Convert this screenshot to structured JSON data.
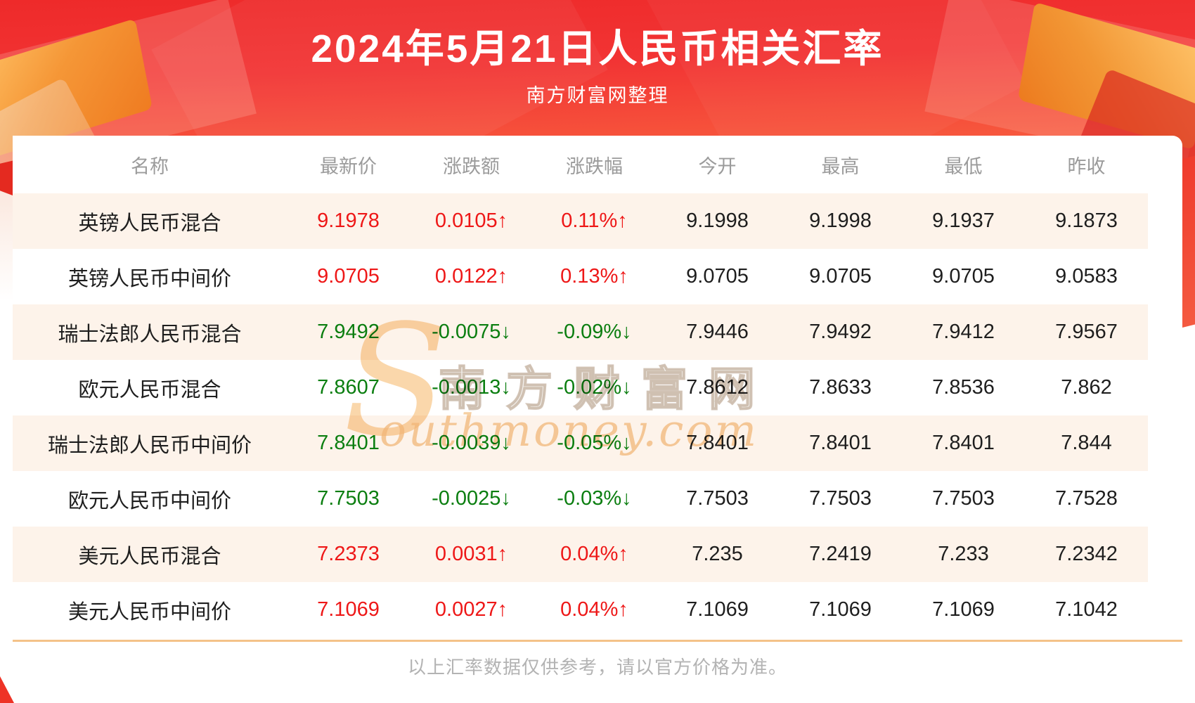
{
  "header": {
    "title": "2024年5月21日人民币相关汇率",
    "subtitle": "南方财富网整理"
  },
  "chart_data": {
    "type": "table",
    "title": "2024年5月21日人民币相关汇率",
    "columns": [
      "名称",
      "最新价",
      "涨跌额",
      "涨跌幅",
      "今开",
      "最高",
      "最低",
      "昨收"
    ],
    "arrows": {
      "up": "↑",
      "down": "↓"
    },
    "rows": [
      {
        "name": "英镑人民币混合",
        "latest": "9.1978",
        "change": "0.0105",
        "pct": "0.11%",
        "open": "9.1998",
        "high": "9.1998",
        "low": "9.1937",
        "prev": "9.1873",
        "trend": "up"
      },
      {
        "name": "英镑人民币中间价",
        "latest": "9.0705",
        "change": "0.0122",
        "pct": "0.13%",
        "open": "9.0705",
        "high": "9.0705",
        "low": "9.0705",
        "prev": "9.0583",
        "trend": "up"
      },
      {
        "name": "瑞士法郎人民币混合",
        "latest": "7.9492",
        "change": "-0.0075",
        "pct": "-0.09%",
        "open": "7.9446",
        "high": "7.9492",
        "low": "7.9412",
        "prev": "7.9567",
        "trend": "down"
      },
      {
        "name": "欧元人民币混合",
        "latest": "7.8607",
        "change": "-0.0013",
        "pct": "-0.02%",
        "open": "7.8612",
        "high": "7.8633",
        "low": "7.8536",
        "prev": "7.862",
        "trend": "down"
      },
      {
        "name": "瑞士法郎人民币中间价",
        "latest": "7.8401",
        "change": "-0.0039",
        "pct": "-0.05%",
        "open": "7.8401",
        "high": "7.8401",
        "low": "7.8401",
        "prev": "7.844",
        "trend": "down"
      },
      {
        "name": "欧元人民币中间价",
        "latest": "7.7503",
        "change": "-0.0025",
        "pct": "-0.03%",
        "open": "7.7503",
        "high": "7.7503",
        "low": "7.7503",
        "prev": "7.7528",
        "trend": "down"
      },
      {
        "name": "美元人民币混合",
        "latest": "7.2373",
        "change": "0.0031",
        "pct": "0.04%",
        "open": "7.235",
        "high": "7.2419",
        "low": "7.233",
        "prev": "7.2342",
        "trend": "up"
      },
      {
        "name": "美元人民币中间价",
        "latest": "7.1069",
        "change": "0.0027",
        "pct": "0.04%",
        "open": "7.1069",
        "high": "7.1069",
        "low": "7.1069",
        "prev": "7.1042",
        "trend": "up"
      }
    ]
  },
  "watermark": {
    "initial": "S",
    "cn": "南方财富网",
    "en": "outhmoney.com"
  },
  "footer": {
    "note": "以上汇率数据仅供参考，请以官方价格为准。"
  },
  "colors": {
    "up": "#ee1717",
    "down": "#0b7e10",
    "row_alt": "#fdf3ea",
    "divider": "#f4c289",
    "banner_top": "#ee2a2a",
    "banner_bottom": "#fa6a47"
  }
}
